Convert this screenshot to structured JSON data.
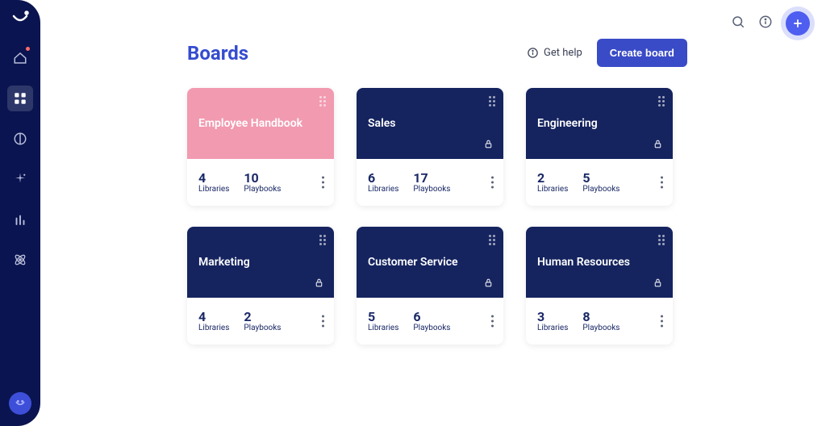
{
  "colors": {
    "sidebar_bg": "#0a1450",
    "primary": "#3a4bc7",
    "card_dark": "#15245f",
    "card_pink": "#f29ab0",
    "stat_text": "#1a2866",
    "title": "#354ccf"
  },
  "page": {
    "title": "Boards"
  },
  "header": {
    "get_help_label": "Get help",
    "create_label": "Create board"
  },
  "topbar": {
    "add_label": "+"
  },
  "stat_labels": {
    "libraries": "Libraries",
    "playbooks": "Playbooks"
  },
  "boards": [
    {
      "title": "Employee Handbook",
      "libraries": 4,
      "playbooks": 10,
      "bg": "#f29ab0",
      "locked": false
    },
    {
      "title": "Sales",
      "libraries": 6,
      "playbooks": 17,
      "bg": "#15245f",
      "locked": true
    },
    {
      "title": "Engineering",
      "libraries": 2,
      "playbooks": 5,
      "bg": "#15245f",
      "locked": true
    },
    {
      "title": "Marketing",
      "libraries": 4,
      "playbooks": 2,
      "bg": "#15245f",
      "locked": true
    },
    {
      "title": "Customer Service",
      "libraries": 5,
      "playbooks": 6,
      "bg": "#15245f",
      "locked": true
    },
    {
      "title": "Human Resources",
      "libraries": 3,
      "playbooks": 8,
      "bg": "#15245f",
      "locked": true
    }
  ]
}
